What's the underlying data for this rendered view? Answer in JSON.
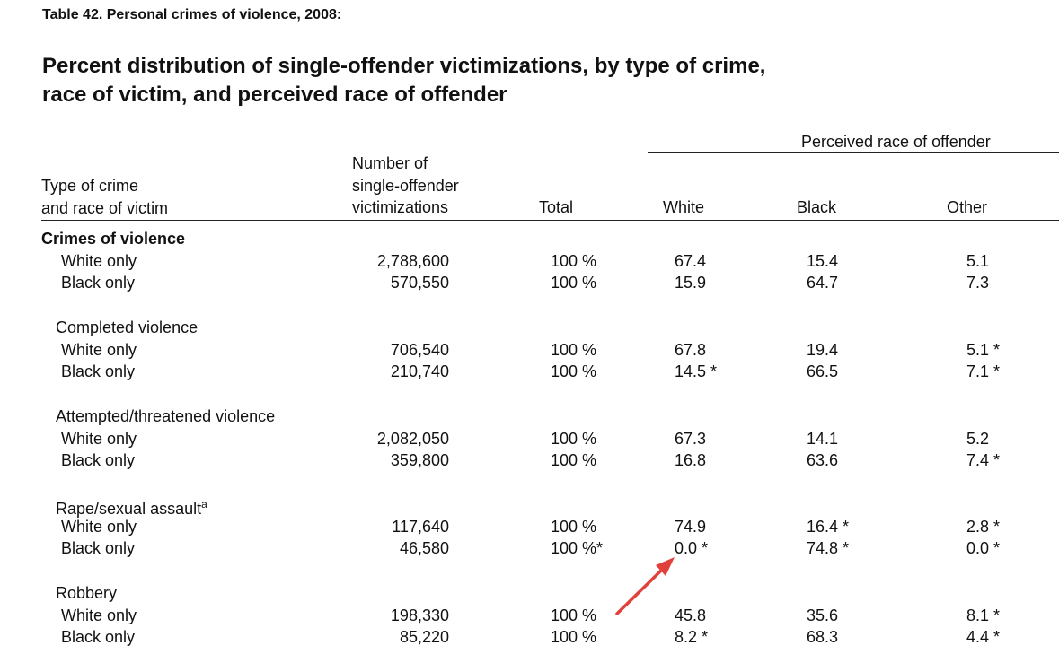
{
  "table_label": "Table 42. Personal crimes of violence, 2008:",
  "title_lines": [
    "Percent distribution of single-offender victimizations, by type of crime,",
    "race of victim, and perceived race of offender"
  ],
  "header": {
    "group_label": "Perceived race of offender",
    "col_type": [
      "Type of crime",
      "and race of victim"
    ],
    "col_number": [
      "Number of",
      "single-offender",
      "victimizations"
    ],
    "col_total": "Total",
    "col_white": "White",
    "col_black": "Black",
    "col_other": "Other"
  },
  "sections": [
    {
      "label": "Crimes of violence",
      "superscript": "",
      "bold": true,
      "rows": [
        {
          "victim": "White only",
          "number": "2,788,600",
          "total": "100 %",
          "white": "67.4",
          "black": "15.4",
          "other": "5.1"
        },
        {
          "victim": "Black only",
          "number": "570,550",
          "total": "100 %",
          "white": "15.9",
          "black": "64.7",
          "other": "7.3"
        }
      ]
    },
    {
      "label": "Completed violence",
      "superscript": "",
      "bold": false,
      "rows": [
        {
          "victim": "White only",
          "number": "706,540",
          "total": "100 %",
          "white": "67.8",
          "black": "19.4",
          "other": "5.1 *"
        },
        {
          "victim": "Black only",
          "number": "210,740",
          "total": "100 %",
          "white": "14.5 *",
          "black": "66.5",
          "other": "7.1 *"
        }
      ]
    },
    {
      "label": "Attempted/threatened violence",
      "superscript": "",
      "bold": false,
      "rows": [
        {
          "victim": "White only",
          "number": "2,082,050",
          "total": "100 %",
          "white": "67.3",
          "black": "14.1",
          "other": "5.2"
        },
        {
          "victim": "Black only",
          "number": "359,800",
          "total": "100 %",
          "white": "16.8",
          "black": "63.6",
          "other": "7.4 *"
        }
      ]
    },
    {
      "label": "Rape/sexual assault",
      "superscript": "a",
      "bold": false,
      "rows": [
        {
          "victim": "White only",
          "number": "117,640",
          "total": "100 %",
          "white": "74.9",
          "black": "16.4 *",
          "other": "2.8 *"
        },
        {
          "victim": "Black only",
          "number": "46,580",
          "total": "100 %*",
          "white": "0.0 *",
          "black": "74.8 *",
          "other": "0.0 *"
        }
      ]
    },
    {
      "label": "Robbery",
      "superscript": "",
      "bold": false,
      "rows": [
        {
          "victim": "White only",
          "number": "198,330",
          "total": "100 %",
          "white": "45.8",
          "black": "35.6",
          "other": "8.1 *"
        },
        {
          "victim": "Black only",
          "number": "85,220",
          "total": "100 %",
          "white": "8.2 *",
          "black": "68.3",
          "other": "4.4 *"
        }
      ]
    }
  ],
  "annotation": {
    "arrow_color": "#e0413a",
    "arrow_target": "sections.3.rows.1.white"
  }
}
